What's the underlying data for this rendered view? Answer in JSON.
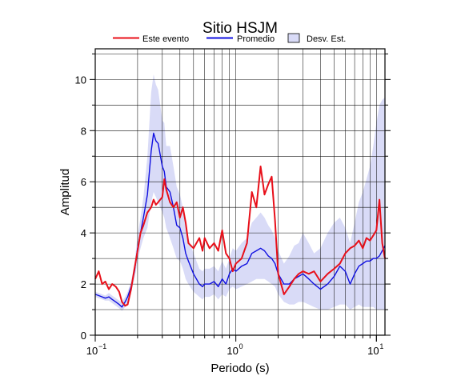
{
  "chart_data": {
    "type": "line",
    "title": "Sitio HSJM",
    "xlabel": "Periodo (s)",
    "ylabel": "Amplitud",
    "xscale": "log",
    "xlim": [
      0.1,
      11.5
    ],
    "ylim": [
      0,
      11.2
    ],
    "grid": true,
    "legend_position": "top",
    "y_ticks": [
      0,
      2,
      4,
      6,
      8,
      10
    ],
    "y_tick_labels": [
      "0",
      "2",
      "4",
      "6",
      "8",
      "10"
    ],
    "x_tick_labels": [
      {
        "value": 0.1,
        "base": "10",
        "exp": "−1"
      },
      {
        "value": 1,
        "base": "10",
        "exp": "0"
      },
      {
        "value": 10,
        "base": "10",
        "exp": "1"
      }
    ],
    "legend": [
      {
        "label": "Este evento",
        "kind": "line",
        "color": "#e8101a"
      },
      {
        "label": "Promedio",
        "kind": "line",
        "color": "#1010e0"
      },
      {
        "label": "Desv. Est.",
        "kind": "band",
        "color": "#d9dbf7"
      }
    ],
    "series": [
      {
        "name": "Este evento",
        "color": "#e8101a",
        "x": [
          0.1,
          0.106,
          0.112,
          0.118,
          0.125,
          0.132,
          0.14,
          0.148,
          0.155,
          0.163,
          0.17,
          0.18,
          0.19,
          0.2,
          0.21,
          0.22,
          0.235,
          0.25,
          0.26,
          0.27,
          0.28,
          0.3,
          0.31,
          0.32,
          0.34,
          0.36,
          0.38,
          0.4,
          0.42,
          0.44,
          0.46,
          0.5,
          0.55,
          0.58,
          0.6,
          0.65,
          0.7,
          0.75,
          0.8,
          0.85,
          0.9,
          0.95,
          1.0,
          1.1,
          1.2,
          1.3,
          1.4,
          1.5,
          1.6,
          1.7,
          1.8,
          1.9,
          2.0,
          2.2,
          2.4,
          2.6,
          2.8,
          3.0,
          3.3,
          3.6,
          4.0,
          4.5,
          5.0,
          5.5,
          6.0,
          6.5,
          7.0,
          7.5,
          8.0,
          8.5,
          9.0,
          9.5,
          10.0,
          10.5,
          11.0,
          11.5
        ],
        "y": [
          2.2,
          2.5,
          2.0,
          2.1,
          1.8,
          2.0,
          1.9,
          1.7,
          1.3,
          1.15,
          1.2,
          1.8,
          2.6,
          3.3,
          4.0,
          4.3,
          4.8,
          5.0,
          5.3,
          5.1,
          5.2,
          5.4,
          6.1,
          5.7,
          5.2,
          5.0,
          5.2,
          4.6,
          5.0,
          4.4,
          3.6,
          3.4,
          3.8,
          3.3,
          3.8,
          3.4,
          3.6,
          3.3,
          4.1,
          3.2,
          3.0,
          2.5,
          2.8,
          3.0,
          3.6,
          5.6,
          5.0,
          6.6,
          5.5,
          5.9,
          6.2,
          4.5,
          2.4,
          1.6,
          1.9,
          2.2,
          2.4,
          2.5,
          2.4,
          2.5,
          2.1,
          2.4,
          2.6,
          2.8,
          3.2,
          3.4,
          3.5,
          3.7,
          3.4,
          3.8,
          3.7,
          3.9,
          4.1,
          5.3,
          3.6,
          3.0
        ]
      },
      {
        "name": "Promedio",
        "color": "#1010e0",
        "x": [
          0.1,
          0.106,
          0.112,
          0.118,
          0.125,
          0.132,
          0.14,
          0.148,
          0.155,
          0.163,
          0.17,
          0.18,
          0.19,
          0.2,
          0.21,
          0.22,
          0.235,
          0.25,
          0.26,
          0.27,
          0.28,
          0.3,
          0.31,
          0.32,
          0.34,
          0.36,
          0.38,
          0.4,
          0.42,
          0.44,
          0.46,
          0.5,
          0.55,
          0.58,
          0.6,
          0.65,
          0.7,
          0.75,
          0.8,
          0.85,
          0.9,
          0.95,
          1.0,
          1.1,
          1.2,
          1.3,
          1.4,
          1.5,
          1.6,
          1.7,
          1.8,
          1.9,
          2.0,
          2.2,
          2.4,
          2.6,
          2.8,
          3.0,
          3.3,
          3.6,
          4.0,
          4.5,
          5.0,
          5.5,
          6.0,
          6.5,
          7.0,
          7.5,
          8.0,
          8.5,
          9.0,
          9.5,
          10.0,
          10.5,
          11.0,
          11.5
        ],
        "y": [
          1.6,
          1.55,
          1.5,
          1.45,
          1.5,
          1.4,
          1.3,
          1.2,
          1.1,
          1.3,
          1.5,
          1.9,
          2.5,
          3.4,
          4.0,
          4.6,
          5.5,
          7.2,
          7.9,
          7.6,
          7.5,
          6.6,
          6.4,
          5.8,
          5.6,
          5.0,
          4.3,
          4.2,
          3.8,
          3.2,
          2.9,
          2.4,
          2.0,
          1.9,
          2.0,
          2.0,
          2.1,
          1.9,
          2.2,
          2.0,
          2.4,
          2.6,
          2.5,
          2.7,
          2.8,
          3.2,
          3.3,
          3.4,
          3.3,
          3.1,
          3.0,
          2.8,
          2.4,
          2.0,
          2.0,
          2.2,
          2.3,
          2.4,
          2.2,
          2.0,
          1.8,
          2.0,
          2.3,
          2.7,
          2.5,
          2.0,
          2.4,
          2.7,
          2.8,
          2.9,
          2.9,
          3.0,
          3.0,
          3.1,
          3.3,
          3.5
        ]
      },
      {
        "name": "Desv. Est.",
        "type": "band",
        "color": "#d9dbf7",
        "x": [
          0.1,
          0.106,
          0.112,
          0.118,
          0.125,
          0.132,
          0.14,
          0.148,
          0.155,
          0.163,
          0.17,
          0.18,
          0.19,
          0.2,
          0.21,
          0.22,
          0.235,
          0.25,
          0.26,
          0.27,
          0.28,
          0.3,
          0.31,
          0.32,
          0.34,
          0.36,
          0.38,
          0.4,
          0.42,
          0.44,
          0.46,
          0.5,
          0.55,
          0.58,
          0.6,
          0.65,
          0.7,
          0.75,
          0.8,
          0.85,
          0.9,
          0.95,
          1.0,
          1.1,
          1.2,
          1.3,
          1.4,
          1.5,
          1.6,
          1.7,
          1.8,
          1.9,
          2.0,
          2.2,
          2.4,
          2.6,
          2.8,
          3.0,
          3.3,
          3.6,
          4.0,
          4.5,
          5.0,
          5.5,
          6.0,
          6.5,
          7.0,
          7.5,
          8.0,
          8.5,
          9.0,
          9.5,
          10.0,
          10.5,
          11.0,
          11.5
        ],
        "low": [
          1.5,
          1.45,
          1.4,
          1.35,
          1.35,
          1.25,
          1.15,
          1.05,
          0.95,
          1.1,
          1.3,
          1.7,
          2.2,
          2.9,
          3.4,
          3.8,
          4.2,
          5.2,
          5.6,
          5.4,
          5.2,
          4.8,
          4.6,
          4.2,
          3.8,
          3.4,
          3.0,
          2.9,
          2.6,
          2.2,
          2.0,
          1.7,
          1.5,
          1.4,
          1.5,
          1.5,
          1.6,
          1.4,
          1.6,
          1.5,
          1.8,
          1.9,
          1.8,
          1.9,
          2.0,
          2.1,
          2.2,
          2.2,
          2.2,
          2.1,
          2.0,
          1.9,
          1.6,
          1.3,
          1.2,
          1.2,
          1.3,
          1.3,
          1.2,
          1.1,
          1.0,
          1.0,
          1.1,
          1.2,
          1.2,
          1.0,
          1.1,
          1.2,
          1.1,
          1.1,
          1.1,
          1.1,
          1.0,
          1.0,
          1.0,
          1.0
        ],
        "high": [
          1.7,
          1.65,
          1.6,
          1.55,
          1.65,
          1.55,
          1.45,
          1.35,
          1.3,
          1.5,
          1.7,
          2.1,
          2.8,
          3.9,
          4.6,
          5.4,
          7.0,
          9.5,
          10.2,
          9.8,
          9.6,
          8.4,
          8.3,
          7.4,
          7.4,
          6.6,
          5.8,
          5.5,
          5.0,
          4.3,
          3.8,
          3.2,
          2.6,
          2.5,
          2.6,
          2.6,
          2.7,
          2.5,
          2.9,
          2.6,
          3.0,
          3.4,
          3.3,
          3.6,
          3.8,
          4.4,
          4.6,
          4.8,
          4.6,
          4.3,
          4.1,
          3.8,
          3.3,
          2.8,
          3.1,
          3.5,
          3.6,
          4.0,
          3.6,
          3.2,
          3.4,
          4.0,
          4.4,
          4.6,
          4.2,
          3.6,
          4.4,
          5.2,
          5.6,
          6.1,
          6.6,
          7.4,
          8.3,
          9.0,
          9.2,
          9.3
        ]
      }
    ]
  }
}
